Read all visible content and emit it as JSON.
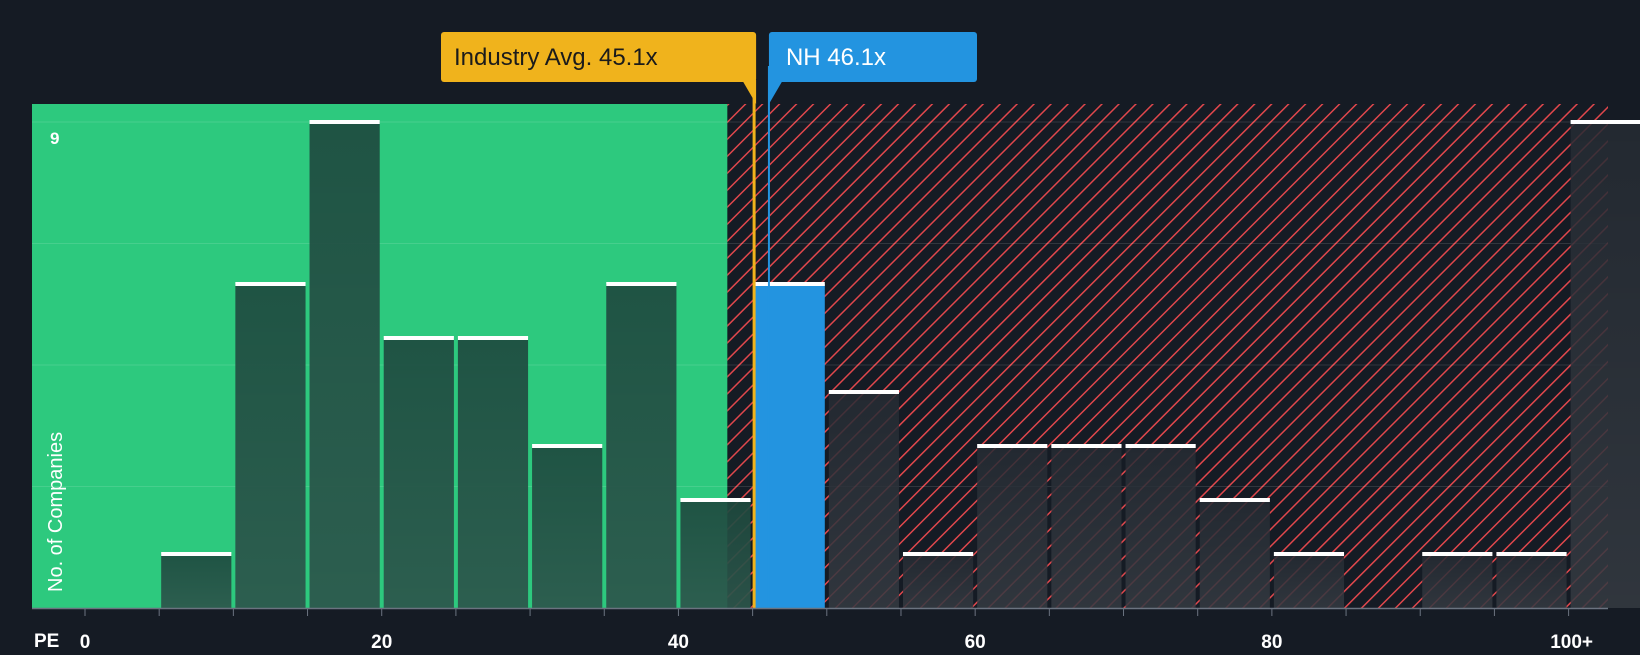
{
  "chart_data": {
    "type": "bar",
    "title": "",
    "xlabel": "PE",
    "ylabel": "No. of Companies",
    "x_ticks": [
      {
        "value": 0,
        "label": "0"
      },
      {
        "value": 20,
        "label": "20"
      },
      {
        "value": 40,
        "label": "40"
      },
      {
        "value": 60,
        "label": "60"
      },
      {
        "value": 80,
        "label": "80"
      },
      {
        "value": 100,
        "label": "100+"
      }
    ],
    "y_tick_label": "9",
    "y_max": 9,
    "xlim": [
      0,
      100
    ],
    "bin_width": 5,
    "bins": [
      {
        "x_start": 0,
        "count": 0
      },
      {
        "x_start": 5,
        "count": 1
      },
      {
        "x_start": 10,
        "count": 6
      },
      {
        "x_start": 15,
        "count": 9
      },
      {
        "x_start": 20,
        "count": 5
      },
      {
        "x_start": 25,
        "count": 5
      },
      {
        "x_start": 30,
        "count": 3
      },
      {
        "x_start": 35,
        "count": 6
      },
      {
        "x_start": 40,
        "count": 2
      },
      {
        "x_start": 45,
        "count": 6,
        "highlight": true
      },
      {
        "x_start": 50,
        "count": 4
      },
      {
        "x_start": 55,
        "count": 1
      },
      {
        "x_start": 60,
        "count": 3
      },
      {
        "x_start": 65,
        "count": 3
      },
      {
        "x_start": 70,
        "count": 3
      },
      {
        "x_start": 75,
        "count": 2
      },
      {
        "x_start": 80,
        "count": 1
      },
      {
        "x_start": 85,
        "count": 0
      },
      {
        "x_start": 90,
        "count": 1
      },
      {
        "x_start": 95,
        "count": 1
      },
      {
        "x_start": 100,
        "count": 9
      }
    ],
    "fair_zone_end": 43.3,
    "industry_avg": {
      "value": 45.1,
      "label": "Industry Avg. 45.1x"
    },
    "company": {
      "value": 46.1,
      "label": "NH 46.1x"
    },
    "colors": {
      "background": "#151b24",
      "fair_zone": "#2dc97e",
      "over_zone": "#8c2a2e",
      "hatch": "#e0474c",
      "bar_in_fair": "#1e4a3f",
      "bar_in_over": "#262b34",
      "highlight_bar": "#2394e0",
      "industry_avg": "#f0b31c",
      "company": "#2394e0",
      "text": "#ffffff"
    }
  }
}
